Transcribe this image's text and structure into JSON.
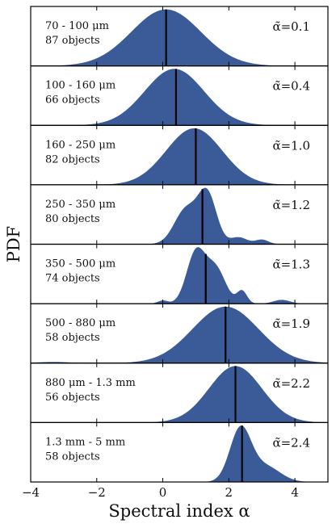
{
  "chart_data": {
    "type": "area",
    "title": "",
    "xlabel": "Spectral index α",
    "ylabel": "PDF",
    "xlim": [
      -4,
      5
    ],
    "x_ticks": [
      -4,
      -2,
      0,
      2,
      4
    ],
    "x_tick_labels": [
      "−4",
      "−2",
      "0",
      "2",
      "4"
    ],
    "fill_color": "#3b5b98",
    "line_color": "#000000",
    "panels": [
      {
        "range_label": "70 - 100 μm",
        "count_label": "87 objects",
        "median_label": "α̃=0.1",
        "median": 0.1,
        "components": [
          {
            "mu": 0.1,
            "sigma": 1.05,
            "w": 1.0
          }
        ]
      },
      {
        "range_label": "100 - 160 μm",
        "count_label": "66 objects",
        "median_label": "α̃=0.4",
        "median": 0.4,
        "components": [
          {
            "mu": 0.35,
            "sigma": 0.9,
            "w": 1.0
          }
        ]
      },
      {
        "range_label": "160 - 250 μm",
        "count_label": "82 objects",
        "median_label": "α̃=1.0",
        "median": 1.0,
        "components": [
          {
            "mu": 0.95,
            "sigma": 0.85,
            "w": 1.0
          }
        ]
      },
      {
        "range_label": "250 - 350 μm",
        "count_label": "80 objects",
        "median_label": "α̃=1.2",
        "median": 1.2,
        "components": [
          {
            "mu": 0.7,
            "sigma": 0.35,
            "w": 0.6
          },
          {
            "mu": 1.35,
            "sigma": 0.28,
            "w": 0.85
          },
          {
            "mu": 2.3,
            "sigma": 0.25,
            "w": 0.12
          },
          {
            "mu": 3.0,
            "sigma": 0.2,
            "w": 0.08
          }
        ]
      },
      {
        "range_label": "350 - 500 μm",
        "count_label": "74 objects",
        "median_label": "α̃=1.3",
        "median": 1.3,
        "components": [
          {
            "mu": 1.0,
            "sigma": 0.28,
            "w": 0.8
          },
          {
            "mu": 1.6,
            "sigma": 0.3,
            "w": 0.55
          },
          {
            "mu": 2.4,
            "sigma": 0.15,
            "w": 0.2
          },
          {
            "mu": 3.6,
            "sigma": 0.25,
            "w": 0.06
          },
          {
            "mu": 0.0,
            "sigma": 0.15,
            "w": 0.05
          }
        ]
      },
      {
        "range_label": "500 - 880 μm",
        "count_label": "58 objects",
        "median_label": "α̃=1.9",
        "median": 1.9,
        "components": [
          {
            "mu": 1.9,
            "sigma": 1.0,
            "w": 1.0
          },
          {
            "mu": -3.3,
            "sigma": 0.5,
            "w": 0.02
          }
        ]
      },
      {
        "range_label": "880 μm - 1.3 mm",
        "count_label": "56 objects",
        "median_label": "α̃=2.2",
        "median": 2.2,
        "components": [
          {
            "mu": 2.2,
            "sigma": 0.8,
            "w": 1.0
          }
        ]
      },
      {
        "range_label": "1.3 mm - 5 mm",
        "count_label": "58 objects",
        "median_label": "α̃=2.4",
        "median": 2.4,
        "components": [
          {
            "mu": 2.35,
            "sigma": 0.32,
            "w": 1.0
          },
          {
            "mu": 3.1,
            "sigma": 0.45,
            "w": 0.3
          }
        ]
      }
    ]
  }
}
